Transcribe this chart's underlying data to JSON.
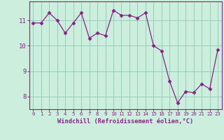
{
  "x": [
    0,
    1,
    2,
    3,
    4,
    5,
    6,
    7,
    8,
    9,
    10,
    11,
    12,
    13,
    14,
    15,
    16,
    17,
    18,
    19,
    20,
    21,
    22,
    23
  ],
  "y": [
    10.9,
    10.9,
    11.3,
    11.0,
    10.5,
    10.9,
    11.3,
    10.3,
    10.5,
    10.4,
    11.4,
    11.2,
    11.2,
    11.1,
    11.3,
    10.0,
    9.8,
    8.6,
    7.75,
    8.2,
    8.15,
    8.5,
    8.3,
    9.85
  ],
  "line_color": "#882288",
  "marker_color": "#882288",
  "bg_color": "#cceedd",
  "grid_color": "#99ccbb",
  "axis_color": "#882288",
  "tick_color": "#882288",
  "xlabel": "Windchill (Refroidissement éolien,°C)",
  "ylim": [
    7.5,
    11.75
  ],
  "xlim": [
    -0.5,
    23.5
  ],
  "yticks": [
    8,
    9,
    10,
    11
  ],
  "xticks": [
    0,
    1,
    2,
    3,
    4,
    5,
    6,
    7,
    8,
    9,
    10,
    11,
    12,
    13,
    14,
    15,
    16,
    17,
    18,
    19,
    20,
    21,
    22,
    23
  ],
  "xlabel_fontsize": 6.2,
  "ytick_fontsize": 6.5,
  "xtick_fontsize": 5.2
}
